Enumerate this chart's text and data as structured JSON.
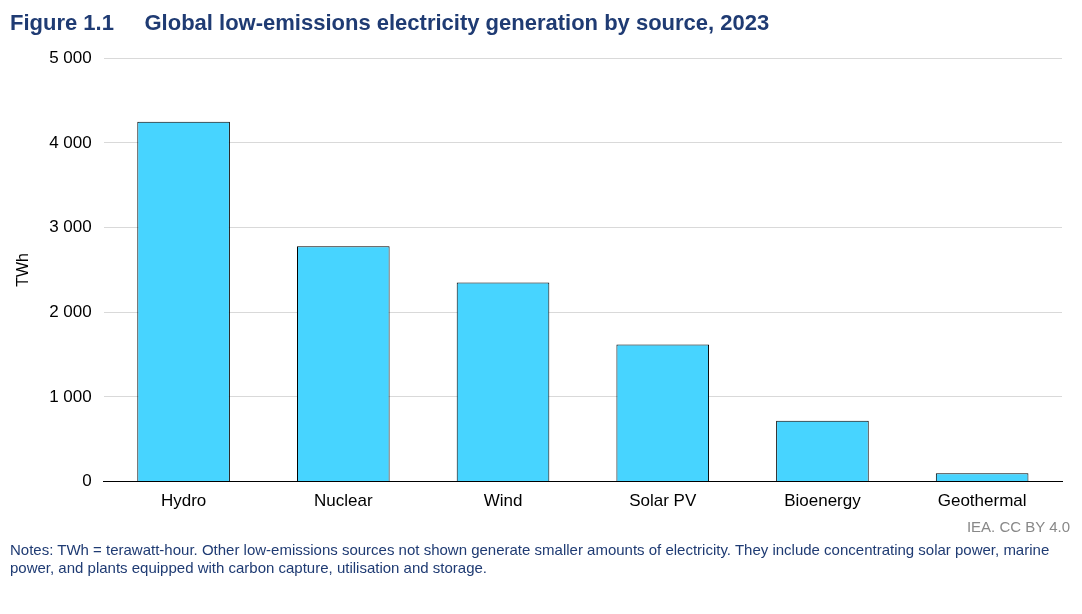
{
  "chart_data": {
    "type": "bar",
    "title": "Figure 1.1     Global low-emissions electricity generation by source, 2023",
    "ylabel": "TWh",
    "categories": [
      "Hydro",
      "Nuclear",
      "Wind",
      "Solar PV",
      "Bioenergy",
      "Geothermal"
    ],
    "values": [
      4250,
      2780,
      2350,
      1620,
      720,
      100
    ],
    "color": "#47d4ff",
    "ylim": [
      0,
      5000
    ],
    "yticks": [
      0,
      {
        "value": 1000,
        "label": "1 000"
      },
      {
        "value": 2000,
        "label": "2 000"
      },
      {
        "value": 3000,
        "label": "3 000"
      },
      {
        "value": 4000,
        "label": "4 000"
      },
      {
        "value": 5000,
        "label": "5 000"
      }
    ],
    "grid": "y",
    "annotations": [
      "IEA. CC BY 4.0",
      "Notes: TWh = terawatt-hour. Other low-emissions sources not shown generate smaller amounts of electricity. They include concentrating solar power, marine power, and plants equipped with carbon capture, utilisation and storage."
    ]
  }
}
